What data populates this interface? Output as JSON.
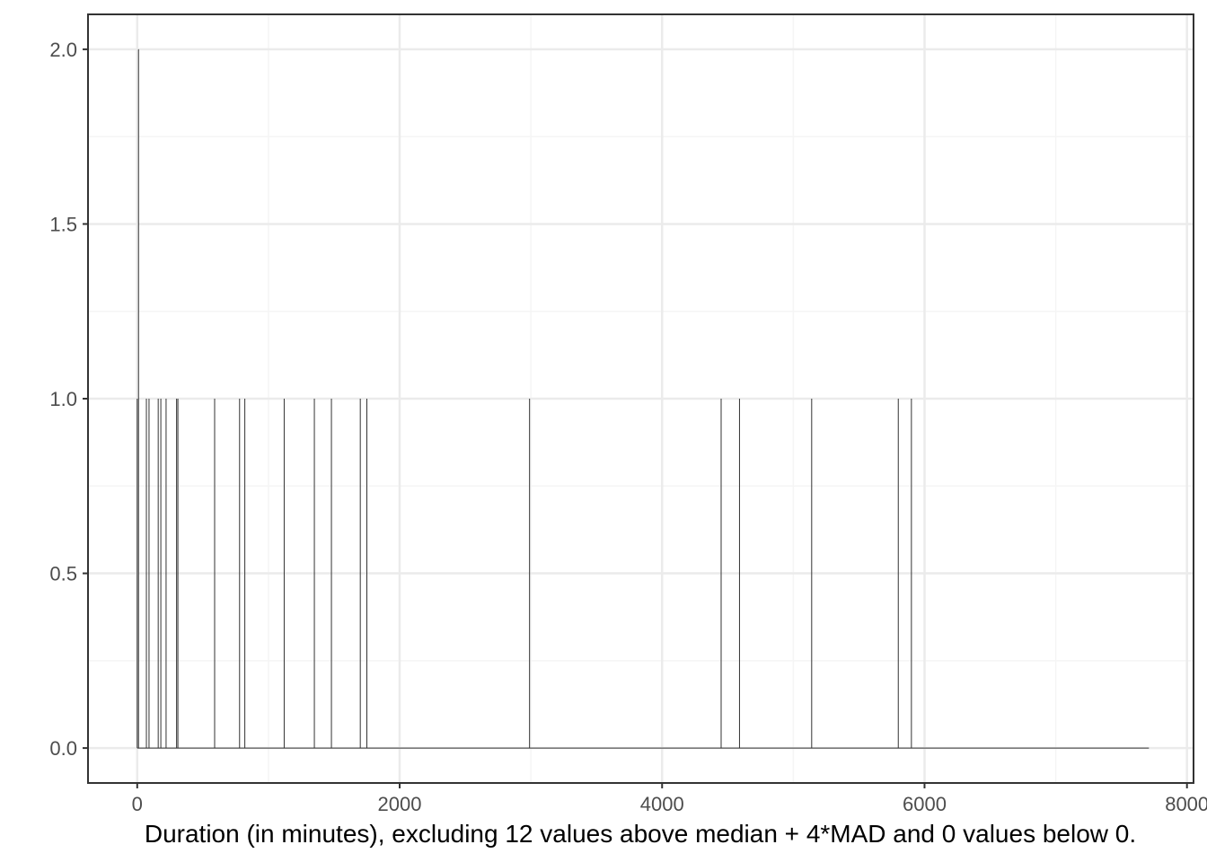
{
  "chart_data": {
    "type": "bar",
    "title": "",
    "xlabel": "Duration (in minutes), excluding 12 values above median + 4*MAD and  0 values below 0.",
    "ylabel": "",
    "xlim": [
      -375,
      8050
    ],
    "ylim": [
      -0.1,
      2.1
    ],
    "x_ticks": [
      {
        "value": 0,
        "label": "0"
      },
      {
        "value": 2000,
        "label": "2000"
      },
      {
        "value": 4000,
        "label": "4000"
      },
      {
        "value": 6000,
        "label": "6000"
      },
      {
        "value": 8000,
        "label": "8000"
      }
    ],
    "y_ticks": [
      {
        "value": 0,
        "label": "0.0"
      },
      {
        "value": 0.5,
        "label": "0.5"
      },
      {
        "value": 1,
        "label": "1.0"
      },
      {
        "value": 1.5,
        "label": "1.5"
      },
      {
        "value": 2,
        "label": "2.0"
      }
    ],
    "baseline_range": [
      0,
      7710
    ],
    "bins": [
      {
        "x": 0,
        "count": 1
      },
      {
        "x": 10,
        "count": 2
      },
      {
        "x": 70,
        "count": 1
      },
      {
        "x": 90,
        "count": 1
      },
      {
        "x": 160,
        "count": 1
      },
      {
        "x": 180,
        "count": 1
      },
      {
        "x": 220,
        "count": 1
      },
      {
        "x": 300,
        "count": 1
      },
      {
        "x": 310,
        "count": 1
      },
      {
        "x": 590,
        "count": 1
      },
      {
        "x": 780,
        "count": 1
      },
      {
        "x": 820,
        "count": 1
      },
      {
        "x": 1120,
        "count": 1
      },
      {
        "x": 1350,
        "count": 1
      },
      {
        "x": 1480,
        "count": 1
      },
      {
        "x": 1700,
        "count": 1
      },
      {
        "x": 1750,
        "count": 1
      },
      {
        "x": 2990,
        "count": 1
      },
      {
        "x": 4450,
        "count": 1
      },
      {
        "x": 4590,
        "count": 1
      },
      {
        "x": 5140,
        "count": 1
      },
      {
        "x": 5800,
        "count": 1
      },
      {
        "x": 5900,
        "count": 1
      }
    ],
    "grid": true,
    "colors": {
      "panel_border": "#333333",
      "grid_major": "#ebebeb",
      "grid_minor": "#f5f5f5",
      "bar_stroke": "#333333",
      "tick_label": "#4d4d4d"
    }
  }
}
